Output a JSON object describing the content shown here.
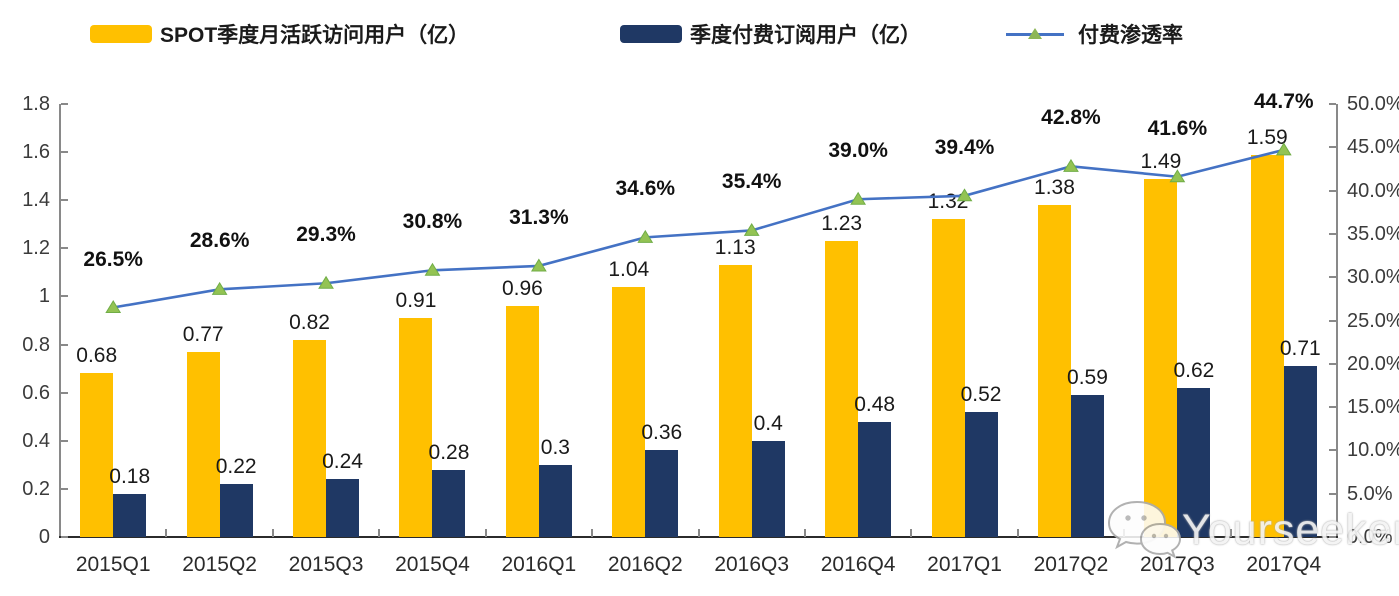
{
  "legend": {
    "items": [
      {
        "label": "SPOT季度月活跃访问用户（亿）",
        "swatch": "bar",
        "color": "#FFC000"
      },
      {
        "label": "季度付费订阅用户（亿）",
        "swatch": "bar",
        "color": "#1F3864"
      },
      {
        "label": "付费渗透率",
        "swatch": "line-marker",
        "color": "#4472C4"
      }
    ]
  },
  "watermark": {
    "text": "Yourseeker",
    "icon": "wechat-icon"
  },
  "colors": {
    "mau_bar": "#FFC000",
    "subs_bar": "#1F3864",
    "line": "#4472C4",
    "marker_fill": "#93C353",
    "marker_stroke": "#70AD47",
    "axis_gray": "#898989",
    "axis_bottom": "#2b2b2b"
  },
  "chart_data": {
    "type": "bar+line combo",
    "categories": [
      "2015Q1",
      "2015Q2",
      "2015Q3",
      "2015Q4",
      "2016Q1",
      "2016Q2",
      "2016Q3",
      "2016Q4",
      "2017Q1",
      "2017Q2",
      "2017Q3",
      "2017Q4"
    ],
    "series": [
      {
        "name": "SPOT季度月活跃访问用户（亿）",
        "type": "bar",
        "axis": "left",
        "values": [
          0.68,
          0.77,
          0.82,
          0.91,
          0.96,
          1.04,
          1.13,
          1.23,
          1.32,
          1.38,
          1.49,
          1.59
        ],
        "labels": [
          "0.68",
          "0.77",
          "0.82",
          "0.91",
          "0.96",
          "1.04",
          "1.13",
          "1.23",
          "1.32",
          "1.38",
          "1.49",
          "1.59"
        ]
      },
      {
        "name": "季度付费订阅用户（亿）",
        "type": "bar",
        "axis": "left",
        "values": [
          0.18,
          0.22,
          0.24,
          0.28,
          0.3,
          0.36,
          0.4,
          0.48,
          0.52,
          0.59,
          0.62,
          0.71
        ],
        "labels": [
          "0.18",
          "0.22",
          "0.24",
          "0.28",
          "0.3",
          "0.36",
          "0.4",
          "0.48",
          "0.52",
          "0.59",
          "0.62",
          "0.71"
        ]
      },
      {
        "name": "付费渗透率",
        "type": "line",
        "axis": "right",
        "values": [
          26.5,
          28.6,
          29.3,
          30.8,
          31.3,
          34.6,
          35.4,
          39.0,
          39.4,
          42.8,
          41.6,
          44.7
        ],
        "labels": [
          "26.5%",
          "28.6%",
          "29.3%",
          "30.8%",
          "31.3%",
          "34.6%",
          "35.4%",
          "39.0%",
          "39.4%",
          "42.8%",
          "41.6%",
          "44.7%"
        ]
      }
    ],
    "left_axis": {
      "min": 0,
      "max": 1.8,
      "step": 0.2,
      "tick_labels": [
        "0",
        "0.2",
        "0.4",
        "0.6",
        "0.8",
        "1",
        "1.2",
        "1.4",
        "1.6",
        "1.8"
      ]
    },
    "right_axis": {
      "min": 0,
      "max": 50,
      "step": 5,
      "tick_labels": [
        "0.0%",
        "5.0%",
        "10.0%",
        "15.0%",
        "20.0%",
        "25.0%",
        "30.0%",
        "35.0%",
        "40.0%",
        "45.0%",
        "50.0%"
      ]
    },
    "title": "",
    "grid": false,
    "legend_position": "top"
  }
}
